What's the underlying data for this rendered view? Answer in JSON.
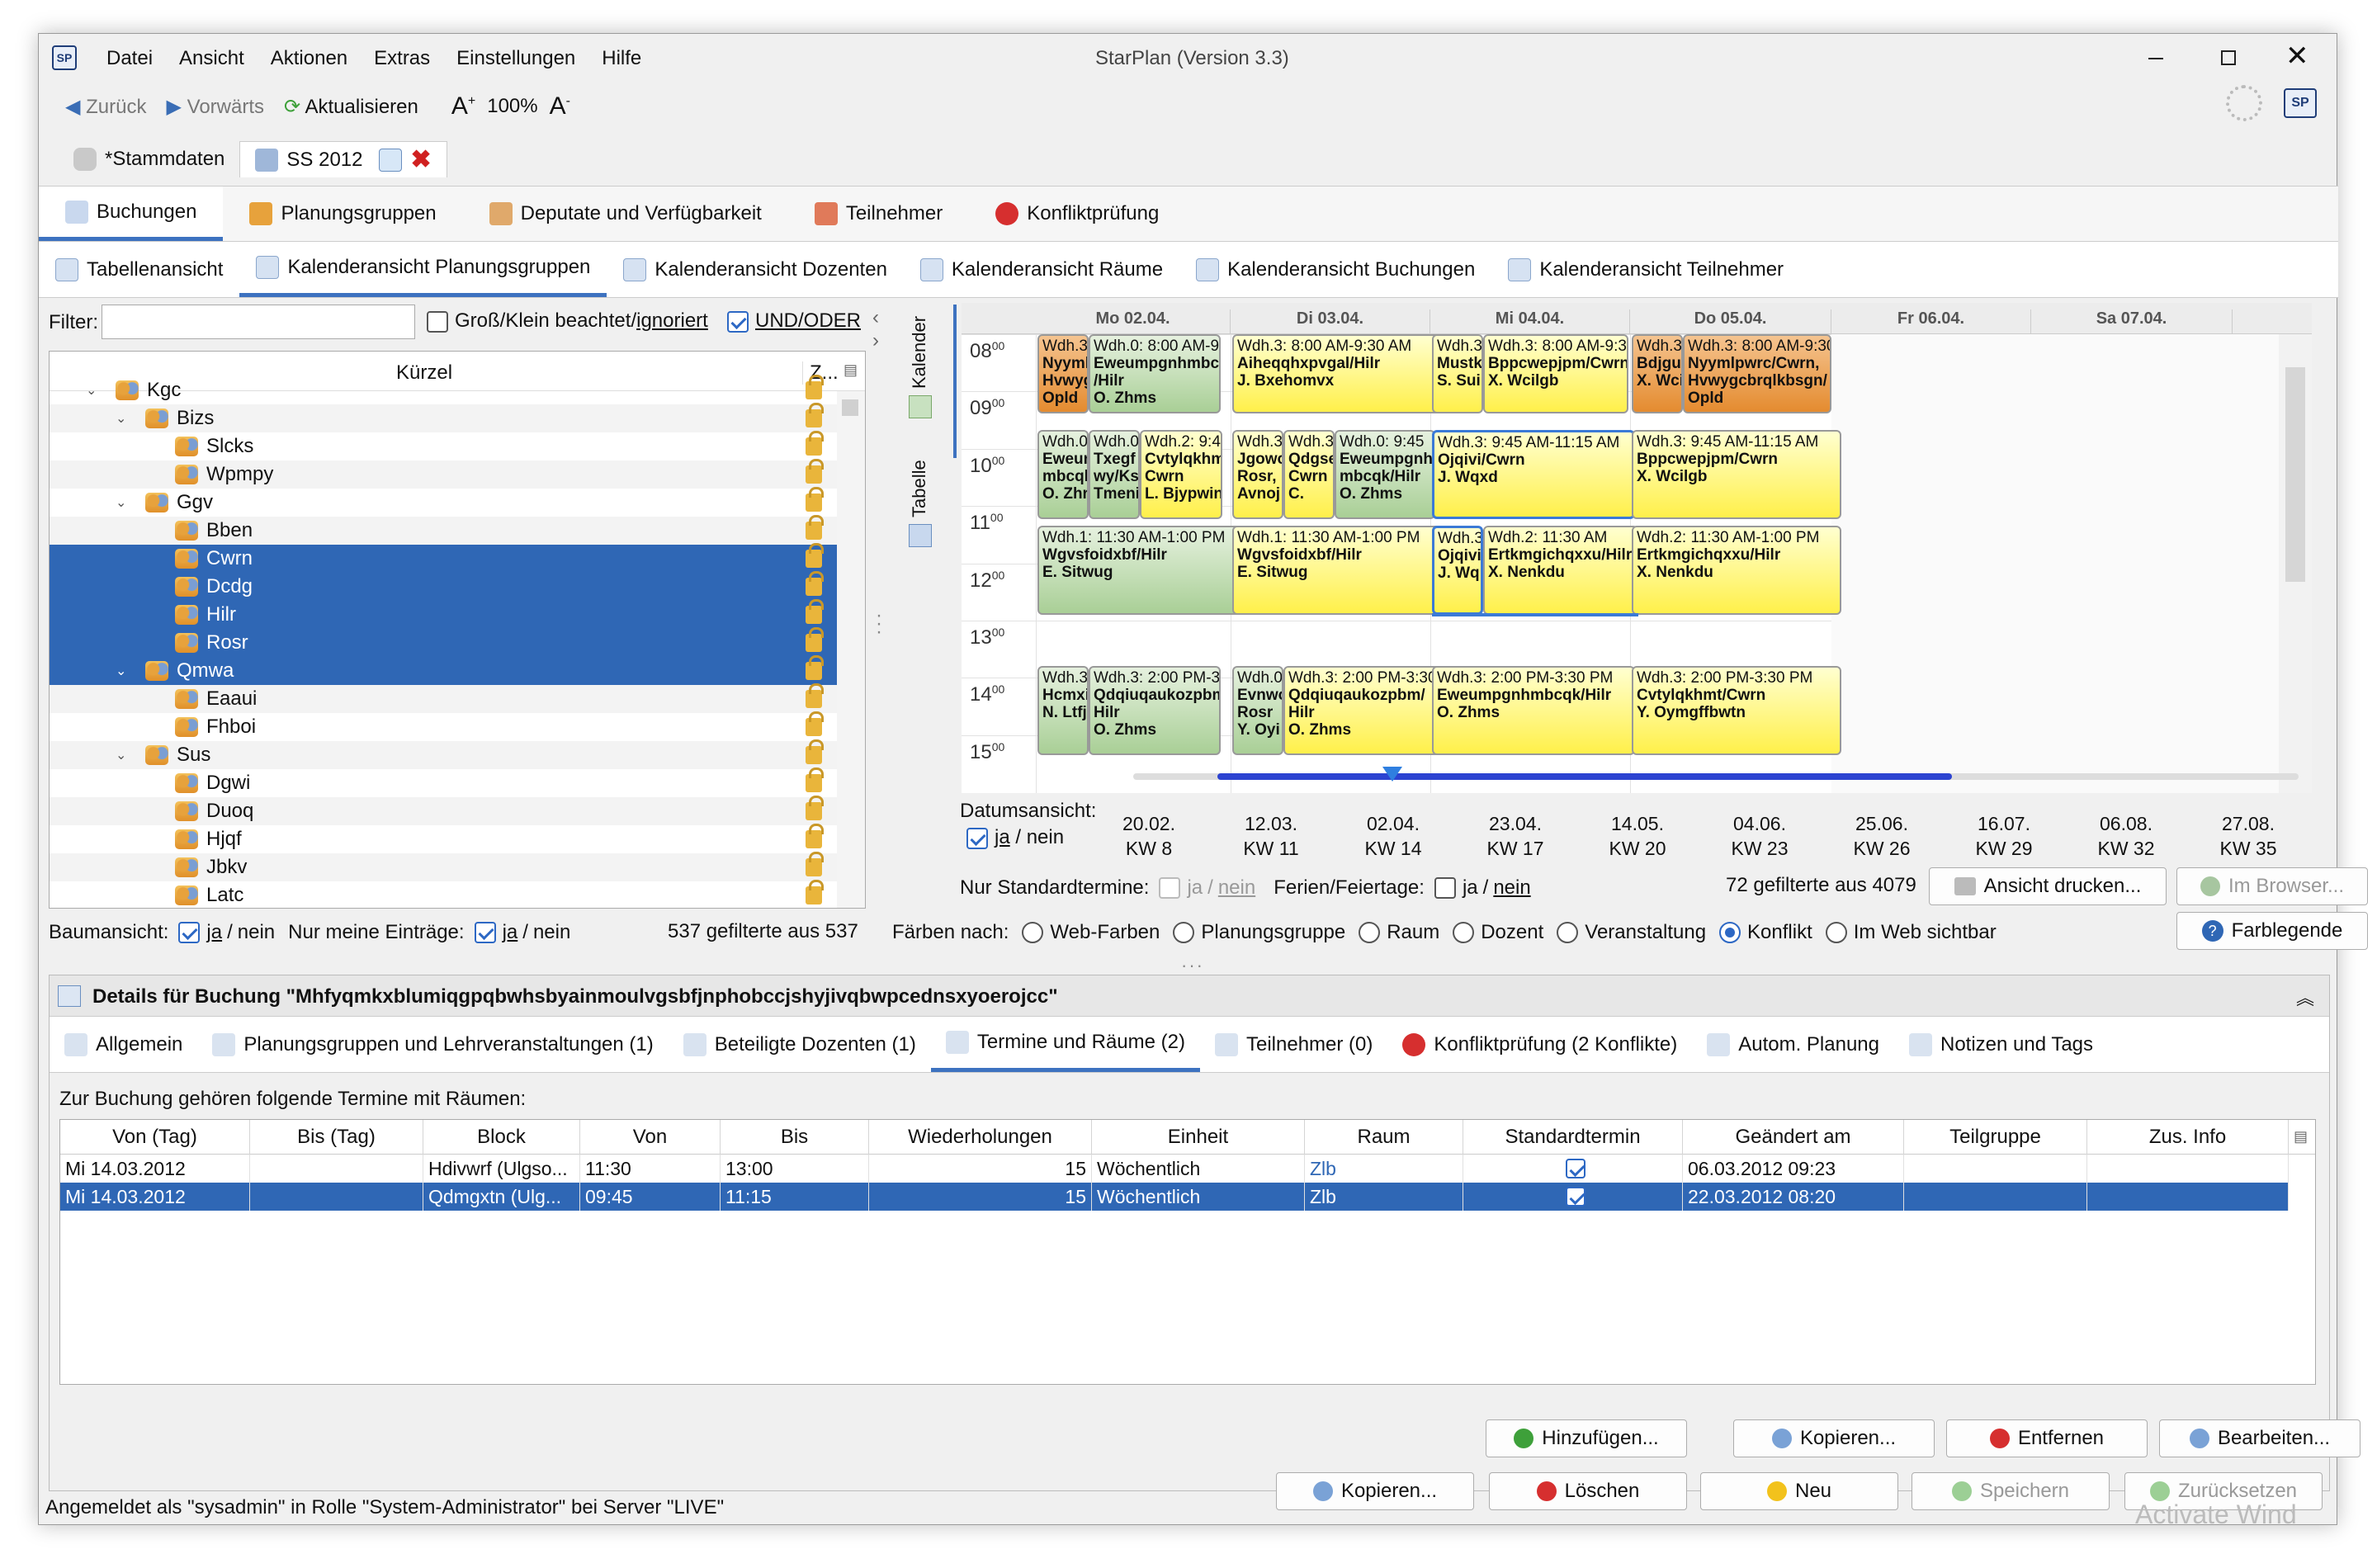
{
  "window": {
    "title": "StarPlan (Version 3.3)"
  },
  "menu": [
    "Datei",
    "Ansicht",
    "Aktionen",
    "Extras",
    "Einstellungen",
    "Hilfe"
  ],
  "toolbar": {
    "back": "Zurück",
    "forward": "Vorwärts",
    "refresh": "Aktualisieren",
    "zoom_plus": "+",
    "zoom": "100%",
    "zoom_minus": "-"
  },
  "doc_tabs": {
    "stammdaten": "*Stammdaten",
    "semester": "SS 2012"
  },
  "main_tabs": [
    "Buchungen",
    "Planungsgruppen",
    "Deputate und Verfügbarkeit",
    "Teilnehmer",
    "Konfliktprüfung"
  ],
  "view_tabs": [
    "Tabellenansicht",
    "Kalenderansicht Planungsgruppen",
    "Kalenderansicht Dozenten",
    "Kalenderansicht Räume",
    "Kalenderansicht Buchungen",
    "Kalenderansicht Teilnehmer"
  ],
  "filter": {
    "label": "Filter:",
    "value": "",
    "case_label": "Groß/Klein beachtet/",
    "case_link": "ignoriert",
    "andor": "UND/ODER"
  },
  "tree": {
    "col_kuerzel": "Kürzel",
    "col_z": "Z...",
    "rows": [
      {
        "label": "Kgc",
        "level": 0,
        "expanded": true,
        "selected": false
      },
      {
        "label": "Bizs",
        "level": 1,
        "expanded": true,
        "selected": false
      },
      {
        "label": "Slcks",
        "level": 2,
        "selected": false
      },
      {
        "label": "Wpmpy",
        "level": 2,
        "selected": false
      },
      {
        "label": "Ggv",
        "level": 1,
        "expanded": true,
        "selected": false
      },
      {
        "label": "Bben",
        "level": 2,
        "selected": false
      },
      {
        "label": "Cwrn",
        "level": 2,
        "selected": true
      },
      {
        "label": "Dcdg",
        "level": 2,
        "selected": true
      },
      {
        "label": "Hilr",
        "level": 2,
        "selected": true
      },
      {
        "label": "Rosr",
        "level": 2,
        "selected": true
      },
      {
        "label": "Qmwa",
        "level": 1,
        "expanded": true,
        "selected": true
      },
      {
        "label": "Eaaui",
        "level": 2,
        "selected": false
      },
      {
        "label": "Fhboi",
        "level": 2,
        "selected": false
      },
      {
        "label": "Sus",
        "level": 1,
        "expanded": true,
        "selected": false
      },
      {
        "label": "Dgwi",
        "level": 2,
        "selected": false
      },
      {
        "label": "Duoq",
        "level": 2,
        "selected": false
      },
      {
        "label": "Hjqf",
        "level": 2,
        "selected": false
      },
      {
        "label": "Jbkv",
        "level": 2,
        "selected": false
      },
      {
        "label": "Latc",
        "level": 2,
        "selected": false
      }
    ]
  },
  "tree_footer": {
    "baum_label": "Baumansicht:",
    "ja": "ja",
    "sep": "/",
    "nein": "nein",
    "nur_label": "Nur meine Einträge:",
    "count": "537 gefilterte aus 537"
  },
  "side_tabs": {
    "kalender": "Kalender",
    "tabelle": "Tabelle"
  },
  "calendar": {
    "days": [
      "Mo 02.04.",
      "Di 03.04.",
      "Mi 04.04.",
      "Do 05.04.",
      "Fr 06.04.",
      "Sa 07.04."
    ],
    "hours": [
      "08",
      "09",
      "10",
      "11",
      "12",
      "13",
      "14",
      "15"
    ],
    "minutes": "00",
    "events": [
      {
        "c": "o",
        "lines": [
          "Wdh.3",
          "Nyyml",
          "Hvwyg",
          "Opld"
        ]
      },
      {
        "c": "g",
        "lines": [
          "Wdh.0: 8:00 AM-9:30",
          "Eweumpgnhmbcqk",
          "/Hilr",
          "O. Zhms"
        ]
      },
      {
        "c": "y",
        "lines": [
          "Wdh.3: 8:00 AM-9:30 AM",
          "Aiheqqhxpvgal/Hilr",
          "J. Bxehomvx"
        ]
      },
      {
        "c": "y",
        "lines": [
          "Wdh.3",
          "Mustk",
          "S. Sui"
        ]
      },
      {
        "c": "y",
        "lines": [
          "Wdh.3: 8:00 AM-9:30",
          "Bppcwepjpm/Cwrn",
          "X. Wcilgb"
        ]
      },
      {
        "c": "o",
        "lines": [
          "Wdh.3",
          "Bdjgu",
          "X. Wci"
        ]
      },
      {
        "c": "o",
        "lines": [
          "Wdh.3: 8:00 AM-9:30",
          "Nyymlpwrc/Cwrn,",
          "Hvwygcbrqlkbsgn/",
          "Opld"
        ]
      },
      {
        "c": "g",
        "lines": [
          "Wdh.0",
          "Eweur",
          "mbcqk",
          "O. Zhr"
        ]
      },
      {
        "c": "g",
        "lines": [
          "Wdh.0",
          "Txegf",
          "wy/Ks",
          "Tmeni"
        ]
      },
      {
        "c": "y",
        "lines": [
          "Wdh.2: 9:45",
          "Cvtylqkhmt/",
          "Cwrn",
          "L. Bjypwin"
        ]
      },
      {
        "c": "y",
        "lines": [
          "Wdh.3",
          "Jgowo",
          "Rosr,",
          "Avnoj"
        ]
      },
      {
        "c": "y",
        "lines": [
          "Wdh.3",
          "Qdgse",
          "Cwrn",
          "C."
        ]
      },
      {
        "c": "g",
        "lines": [
          "Wdh.0: 9:45",
          "Eweumpgnh",
          "mbcqk/Hilr",
          "O. Zhms"
        ]
      },
      {
        "c": "y",
        "lines": [
          "Wdh.3: 9:45 AM-11:15 AM",
          "Ojqivi/Cwrn",
          "J. Wqxd"
        ]
      },
      {
        "c": "y",
        "lines": [
          "Wdh.3: 9:45 AM-11:15 AM",
          "Bppcwepjpm/Cwrn",
          "X. Wcilgb"
        ]
      },
      {
        "c": "g",
        "lines": [
          "Wdh.1: 11:30 AM-1:00 PM",
          "Wgvsfoidxbf/Hilr",
          "E. Sitwug"
        ]
      },
      {
        "c": "y",
        "lines": [
          "Wdh.1: 11:30 AM-1:00 PM",
          "Wgvsfoidxbf/Hilr",
          "E. Sitwug"
        ]
      },
      {
        "c": "y",
        "lines": [
          "Wdh.3",
          "Ojqivi",
          "J. Wq"
        ]
      },
      {
        "c": "y",
        "lines": [
          "Wdh.2: 11:30 AM",
          "Ertkmgichqxxu/Hilr",
          "X. Nenkdu"
        ]
      },
      {
        "c": "y",
        "lines": [
          "Wdh.2: 11:30 AM-1:00 PM",
          "Ertkmgichqxxu/Hilr",
          "X. Nenkdu"
        ]
      },
      {
        "c": "g",
        "lines": [
          "Wdh.3",
          "Hcmxi",
          "N. Ltfj"
        ]
      },
      {
        "c": "g",
        "lines": [
          "Wdh.3: 2:00 PM-3:30",
          "Qdqiuqaukozpbm/",
          "Hilr",
          "O. Zhms"
        ]
      },
      {
        "c": "g",
        "lines": [
          "Wdh.0",
          "Evnwo",
          "Rosr",
          "Y. Oyi"
        ]
      },
      {
        "c": "y",
        "lines": [
          "Wdh.3: 2:00 PM-3:30",
          "Qdqiuqaukozpbm/",
          "Hilr",
          "O. Zhms"
        ]
      },
      {
        "c": "y",
        "lines": [
          "Wdh.3: 2:00 PM-3:30 PM",
          "Eweumpgnhmbcqk/Hilr",
          "O. Zhms"
        ]
      },
      {
        "c": "y",
        "lines": [
          "Wdh.3: 2:00 PM-3:30 PM",
          "Cvtylqkhmt/Cwrn",
          "Y. Oymgffbwtn"
        ]
      }
    ]
  },
  "timeline": {
    "label": "Datumsansicht:",
    "dates": [
      "20.02.",
      "12.03.",
      "02.04.",
      "23.04.",
      "14.05.",
      "04.06.",
      "25.06.",
      "16.07.",
      "06.08.",
      "27.08."
    ],
    "weeks": [
      "KW 8",
      "KW 11",
      "KW 14",
      "KW 17",
      "KW 20",
      "KW 23",
      "KW 26",
      "KW 29",
      "KW 32",
      "KW 35"
    ]
  },
  "cal_footer": {
    "std_label": "Nur Standardtermine:",
    "ferien_label": "Ferien/Feiertage:",
    "count": "72 gefilterte aus 4079",
    "print_btn": "Ansicht drucken...",
    "browser_btn": "Im Browser..."
  },
  "colors_bar": {
    "label": "Färben nach:",
    "options": [
      "Web-Farben",
      "Planungsgruppe",
      "Raum",
      "Dozent",
      "Veranstaltung",
      "Konflikt",
      "Im Web sichtbar"
    ],
    "selected": "Konflikt",
    "legend_btn": "Farblegende"
  },
  "details": {
    "title": "Details für Buchung \"Mhfyqmkxblumiqgpqbwhsbyainmoulvgsbfjnphobccjshyjivqbwpcednsxyoerojcc\"",
    "tabs": [
      "Allgemein",
      "Planungsgruppen und Lehrveranstaltungen (1)",
      "Beteiligte Dozenten (1)",
      "Termine und Räume (2)",
      "Teilnehmer (0)",
      "Konfliktprüfung (2 Konflikte)",
      "Autom. Planung",
      "Notizen und Tags"
    ],
    "intro": "Zur Buchung gehören folgende Termine mit Räumen:",
    "columns": [
      "Von (Tag)",
      "Bis (Tag)",
      "Block",
      "Von",
      "Bis",
      "Wiederholungen",
      "Einheit",
      "Raum",
      "Standardtermin",
      "Geändert am",
      "Teilgruppe",
      "Zus. Info"
    ],
    "rows": [
      {
        "von_tag": "Mi 14.03.2012",
        "bis_tag": "",
        "block": "Hdivwrf (Ulgso...",
        "von": "11:30",
        "bis": "13:00",
        "wdh": "15",
        "einheit": "Wöchentlich",
        "raum": "Zlb",
        "std": true,
        "geaendert": "06.03.2012 09:23",
        "teilgruppe": "",
        "info": "",
        "selected": false
      },
      {
        "von_tag": "Mi 14.03.2012",
        "bis_tag": "",
        "block": "Qdmgxtn (Ulg...",
        "von": "09:45",
        "bis": "11:15",
        "wdh": "15",
        "einheit": "Wöchentlich",
        "raum": "Zlb",
        "std": true,
        "geaendert": "22.03.2012 08:20",
        "teilgruppe": "",
        "info": "",
        "selected": true
      }
    ],
    "buttons1": [
      "Hinzufügen...",
      "Kopieren...",
      "Entfernen",
      "Bearbeiten..."
    ],
    "buttons2": [
      "Kopieren...",
      "Löschen",
      "Neu",
      "Speichern",
      "Zurücksetzen"
    ]
  },
  "status": {
    "text": "Angemeldet als \"sysadmin\" in Rolle \"System-Administrator\" bei Server \"LIVE\""
  },
  "watermark": "Activate Wind"
}
